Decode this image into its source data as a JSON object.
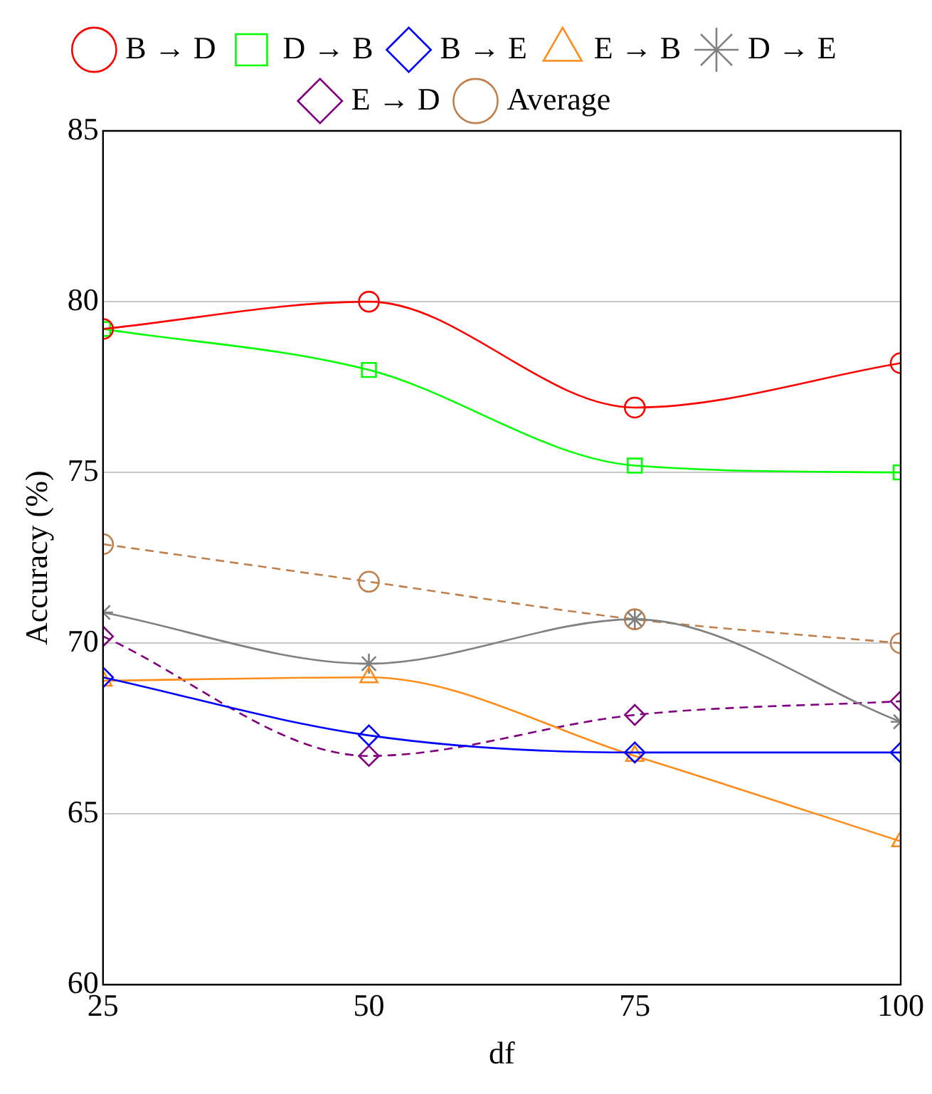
{
  "chart_data": {
    "type": "line",
    "xlabel": "df",
    "ylabel": "Accuracy (%)",
    "x": [
      25,
      50,
      75,
      100
    ],
    "xlim": [
      25,
      100
    ],
    "xticks": [
      25,
      50,
      75,
      100
    ],
    "ylim": [
      60,
      85
    ],
    "yticks": [
      60,
      65,
      70,
      75,
      80,
      85
    ],
    "grid": "y",
    "legend": "top",
    "series": [
      {
        "name": "B → D",
        "color": "#ff0000",
        "marker": "circle",
        "line_style": "solid",
        "values": [
          79.2,
          80.0,
          76.9,
          78.2
        ]
      },
      {
        "name": "D → B",
        "color": "#00ff00",
        "marker": "square",
        "line_style": "solid",
        "values": [
          79.2,
          78.0,
          75.2,
          75.0
        ]
      },
      {
        "name": "B → E",
        "color": "#0000ff",
        "marker": "diamond",
        "line_style": "solid",
        "values": [
          69.0,
          67.3,
          66.8,
          66.8
        ]
      },
      {
        "name": "E → B",
        "color": "#ff8c1a",
        "marker": "triangle",
        "line_style": "solid",
        "values": [
          68.9,
          69.0,
          66.7,
          64.2
        ]
      },
      {
        "name": "D → E",
        "color": "#808080",
        "marker": "cross",
        "line_style": "solid",
        "values": [
          70.9,
          69.4,
          70.7,
          67.7
        ]
      },
      {
        "name": "E → D",
        "color": "#800080",
        "marker": "diamond",
        "line_style": "dashed",
        "values": [
          70.2,
          66.7,
          67.9,
          68.3
        ]
      },
      {
        "name": "Average",
        "color": "#c0804d",
        "marker": "circle",
        "line_style": "dashed",
        "values": [
          72.9,
          71.8,
          70.7,
          70.0
        ]
      }
    ]
  }
}
